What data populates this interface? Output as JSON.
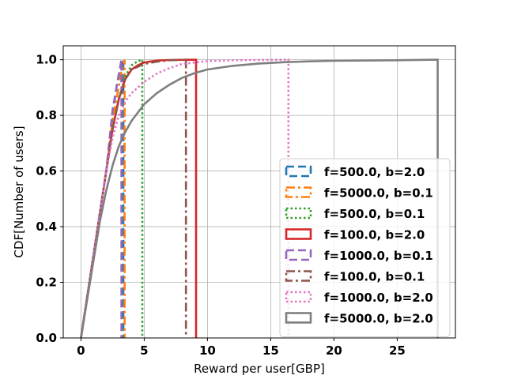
{
  "chart_data": {
    "type": "line",
    "title": "",
    "xlabel": "Reward per user[GBP]",
    "ylabel": "CDF[Number of users]",
    "xlim": [
      -1.4,
      29.6
    ],
    "ylim": [
      0.0,
      1.05
    ],
    "xticks": [
      0,
      5,
      10,
      15,
      20,
      25
    ],
    "yticks": [
      0.0,
      0.2,
      0.4,
      0.6,
      0.8,
      1.0
    ],
    "xtick_labels": [
      "0",
      "5",
      "10",
      "15",
      "20",
      "25"
    ],
    "ytick_labels": [
      "0.0",
      "0.2",
      "0.4",
      "0.6",
      "0.8",
      "1.0"
    ],
    "grid": true,
    "legend_position": "lower-right",
    "series": [
      {
        "name": "f=500.0, b=2.0",
        "color": "#1f77b4",
        "linestyle": "dashed",
        "x": [
          0,
          0.5,
          1.0,
          1.5,
          2.0,
          2.5,
          2.8,
          3.1,
          3.35,
          3.35
        ],
        "y": [
          0,
          0.15,
          0.3,
          0.45,
          0.6,
          0.8,
          0.9,
          0.97,
          1.0,
          0.0
        ]
      },
      {
        "name": "f=5000.0, b=0.1",
        "color": "#ff7f0e",
        "linestyle": "dashdot",
        "x": [
          0,
          0.5,
          1.0,
          1.5,
          2.0,
          2.5,
          2.9,
          3.2,
          3.45,
          3.45
        ],
        "y": [
          0,
          0.15,
          0.3,
          0.45,
          0.6,
          0.78,
          0.88,
          0.96,
          1.0,
          0.0
        ]
      },
      {
        "name": "f=500.0, b=0.1",
        "color": "#2ca02c",
        "linestyle": "dotted",
        "x": [
          0,
          0.5,
          1.0,
          1.5,
          2.0,
          2.5,
          3.0,
          3.5,
          4.0,
          4.5,
          4.85,
          4.85
        ],
        "y": [
          0,
          0.15,
          0.3,
          0.45,
          0.6,
          0.75,
          0.86,
          0.94,
          0.98,
          0.995,
          1.0,
          0.0
        ]
      },
      {
        "name": "f=100.0, b=2.0",
        "color": "#d62728",
        "linestyle": "solid",
        "x": [
          0,
          0.5,
          1.0,
          1.5,
          2.0,
          2.5,
          3.0,
          3.5,
          4.0,
          4.5,
          5.0,
          6.0,
          7.0,
          9.1,
          9.1
        ],
        "y": [
          0,
          0.15,
          0.3,
          0.45,
          0.6,
          0.75,
          0.86,
          0.93,
          0.965,
          0.98,
          0.99,
          0.997,
          0.999,
          1.0,
          0.0
        ]
      },
      {
        "name": "f=1000.0, b=0.1",
        "color": "#9467bd",
        "linestyle": "dashed",
        "x": [
          0,
          0.5,
          1.0,
          1.5,
          2.0,
          2.5,
          3.0,
          3.2,
          3.2
        ],
        "y": [
          0,
          0.15,
          0.3,
          0.45,
          0.6,
          0.82,
          0.95,
          1.0,
          0.0
        ]
      },
      {
        "name": "f=100.0, b=0.1",
        "color": "#8c564b",
        "linestyle": "dashdot",
        "x": [
          0,
          0.5,
          1.0,
          1.5,
          2.0,
          2.5,
          3.0,
          3.5,
          4.0,
          5.0,
          6.0,
          7.0,
          8.3,
          8.3
        ],
        "y": [
          0,
          0.15,
          0.3,
          0.45,
          0.6,
          0.75,
          0.86,
          0.93,
          0.965,
          0.985,
          0.993,
          0.998,
          1.0,
          0.0
        ]
      },
      {
        "name": "f=1000.0, b=2.0",
        "color": "#e377c2",
        "linestyle": "dotted",
        "x": [
          0,
          0.5,
          1.0,
          1.5,
          2.0,
          2.5,
          3.0,
          3.5,
          4.0,
          4.5,
          5.0,
          6.0,
          7.0,
          8.0,
          10.0,
          12.0,
          14.0,
          16.4,
          16.4
        ],
        "y": [
          0,
          0.15,
          0.3,
          0.45,
          0.6,
          0.72,
          0.8,
          0.85,
          0.88,
          0.9,
          0.92,
          0.95,
          0.97,
          0.985,
          0.995,
          0.998,
          0.999,
          1.0,
          0.0
        ]
      },
      {
        "name": "f=5000.0, b=2.0",
        "color": "#7f7f7f",
        "linestyle": "solid",
        "x": [
          0,
          0.5,
          1.0,
          1.5,
          2.0,
          2.5,
          3.0,
          3.5,
          4.0,
          5.0,
          6.0,
          7.0,
          8.0,
          9.0,
          10.0,
          12.0,
          14.0,
          16.0,
          18.0,
          20.0,
          22.0,
          25.0,
          28.2,
          28.2
        ],
        "y": [
          0,
          0.14,
          0.28,
          0.42,
          0.53,
          0.62,
          0.69,
          0.74,
          0.78,
          0.84,
          0.88,
          0.91,
          0.935,
          0.952,
          0.965,
          0.978,
          0.986,
          0.991,
          0.994,
          0.996,
          0.997,
          0.998,
          1.0,
          0.0
        ]
      }
    ]
  }
}
